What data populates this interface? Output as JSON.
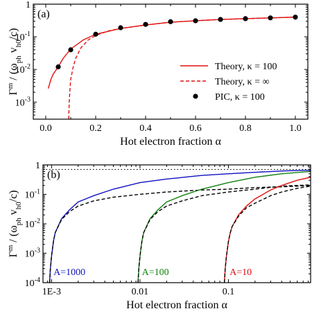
{
  "chart_data": [
    {
      "type": "line",
      "panel_label": "(a)",
      "xlabel": "Hot electron fraction α",
      "ylabel": "Γ^m / (ω_ph v_h0/c)",
      "xscale": "linear",
      "yscale": "log",
      "xlim": [
        -0.05,
        1.05
      ],
      "ylim": [
        0.0003,
        1
      ],
      "x_ticks": [
        {
          "v": 0.0,
          "label": "0.0"
        },
        {
          "v": 0.2,
          "label": "0.2"
        },
        {
          "v": 0.4,
          "label": "0.4"
        },
        {
          "v": 0.6,
          "label": "0.6"
        },
        {
          "v": 0.8,
          "label": "0.8"
        },
        {
          "v": 1.0,
          "label": "1.0"
        }
      ],
      "y_ticks": [
        {
          "v": 0.001,
          "label": "10-3"
        },
        {
          "v": 0.01,
          "label": "10-2"
        },
        {
          "v": 0.1,
          "label": "10-1"
        },
        {
          "v": 1,
          "label": "1"
        }
      ],
      "legend_position": "lower-right",
      "series": [
        {
          "name": "Theory, κ = 100",
          "style": "solid",
          "color": "#e01010",
          "x": [
            0.01,
            0.02,
            0.03,
            0.05,
            0.07,
            0.1,
            0.15,
            0.2,
            0.3,
            0.4,
            0.5,
            0.6,
            0.7,
            0.8,
            0.9,
            1.0
          ],
          "y": [
            0.0026,
            0.0048,
            0.0072,
            0.012,
            0.022,
            0.042,
            0.08,
            0.12,
            0.18,
            0.23,
            0.28,
            0.31,
            0.34,
            0.36,
            0.38,
            0.4
          ]
        },
        {
          "name": "Theory, κ = ∞",
          "style": "dashed",
          "color": "#e01010",
          "x": [
            0.092,
            0.094,
            0.097,
            0.1,
            0.11,
            0.12,
            0.14,
            0.17,
            0.2,
            0.25,
            0.3,
            0.4,
            0.5,
            0.6,
            0.7,
            0.8,
            0.9,
            1.0
          ],
          "y": [
            0.0003,
            0.001,
            0.0025,
            0.005,
            0.012,
            0.022,
            0.045,
            0.08,
            0.11,
            0.15,
            0.18,
            0.23,
            0.28,
            0.31,
            0.34,
            0.36,
            0.38,
            0.4
          ]
        },
        {
          "name": "PIC, κ = 100",
          "style": "marker",
          "color": "#000000",
          "x": [
            0.05,
            0.1,
            0.2,
            0.3,
            0.4,
            0.5,
            0.6,
            0.7,
            0.8,
            0.9,
            1.0
          ],
          "y": [
            0.012,
            0.04,
            0.12,
            0.19,
            0.24,
            0.29,
            0.31,
            0.34,
            0.36,
            0.38,
            0.4
          ]
        }
      ]
    },
    {
      "type": "line",
      "panel_label": "(b)",
      "xlabel": "Hot electron fraction α",
      "ylabel": "Γ^m / (ω_ph v_h0/c)",
      "xscale": "log",
      "yscale": "log",
      "xlim": [
        0.0008,
        0.85
      ],
      "ylim": [
        0.0001,
        1
      ],
      "x_ticks": [
        {
          "v": 0.001,
          "label": "1E-3"
        },
        {
          "v": 0.01,
          "label": "0.01"
        },
        {
          "v": 0.1,
          "label": "0.1"
        }
      ],
      "y_ticks": [
        {
          "v": 0.0001,
          "label": "10-4"
        },
        {
          "v": 0.001,
          "label": "10-3"
        },
        {
          "v": 0.01,
          "label": "10-2"
        },
        {
          "v": 0.1,
          "label": "10-1"
        },
        {
          "v": 1,
          "label": "1"
        }
      ],
      "reference_line": {
        "y": 0.7,
        "style": "dotted",
        "color": "#000000"
      },
      "annotations": [
        {
          "text": "A=1000",
          "color": "#1010c0",
          "x": 0.00105,
          "y": 0.00018
        },
        {
          "text": "A=100",
          "color": "#108010",
          "x": 0.0105,
          "y": 0.00018
        },
        {
          "text": "A=10",
          "color": "#e01010",
          "x": 0.103,
          "y": 0.00018
        }
      ],
      "series": [
        {
          "style": "solid",
          "color": "#1010c0",
          "label": "A=1000",
          "x": [
            0.00095,
            0.00097,
            0.001,
            0.00105,
            0.0011,
            0.0013,
            0.0016,
            0.002,
            0.003,
            0.005,
            0.01,
            0.02,
            0.05,
            0.1,
            0.2,
            0.4,
            0.85
          ],
          "y": [
            0.0001,
            0.0003,
            0.0008,
            0.0025,
            0.005,
            0.015,
            0.03,
            0.055,
            0.09,
            0.15,
            0.25,
            0.33,
            0.44,
            0.5,
            0.56,
            0.62,
            0.66
          ]
        },
        {
          "style": "dashed",
          "color": "#000000",
          "label": "A=1000",
          "x": [
            0.00095,
            0.00097,
            0.001,
            0.00105,
            0.0011,
            0.0013,
            0.0016,
            0.002,
            0.003,
            0.005,
            0.01,
            0.02,
            0.05,
            0.1,
            0.2,
            0.4,
            0.85
          ],
          "y": [
            0.0001,
            0.0003,
            0.0008,
            0.0025,
            0.005,
            0.014,
            0.026,
            0.04,
            0.06,
            0.08,
            0.1,
            0.12,
            0.14,
            0.15,
            0.17,
            0.18,
            0.2
          ]
        },
        {
          "style": "solid",
          "color": "#108010",
          "label": "A=100",
          "x": [
            0.0095,
            0.0097,
            0.01,
            0.0105,
            0.011,
            0.013,
            0.016,
            0.02,
            0.03,
            0.05,
            0.1,
            0.2,
            0.4,
            0.85
          ],
          "y": [
            0.0001,
            0.0003,
            0.0008,
            0.0025,
            0.005,
            0.015,
            0.03,
            0.055,
            0.09,
            0.15,
            0.25,
            0.38,
            0.5,
            0.6
          ]
        },
        {
          "style": "dashed",
          "color": "#000000",
          "label": "A=100",
          "x": [
            0.0095,
            0.0097,
            0.01,
            0.0105,
            0.011,
            0.013,
            0.016,
            0.02,
            0.03,
            0.05,
            0.1,
            0.2,
            0.4,
            0.85
          ],
          "y": [
            0.0001,
            0.0003,
            0.0008,
            0.0025,
            0.005,
            0.014,
            0.026,
            0.04,
            0.06,
            0.09,
            0.12,
            0.15,
            0.19,
            0.21
          ]
        },
        {
          "style": "solid",
          "color": "#e01010",
          "label": "A=10",
          "x": [
            0.09,
            0.092,
            0.095,
            0.1,
            0.105,
            0.11,
            0.13,
            0.16,
            0.2,
            0.3,
            0.4,
            0.6,
            0.85
          ],
          "y": [
            0.0001,
            0.0003,
            0.0008,
            0.0025,
            0.005,
            0.008,
            0.02,
            0.04,
            0.07,
            0.14,
            0.2,
            0.3,
            0.38
          ]
        },
        {
          "style": "dashed",
          "color": "#000000",
          "label": "A=10",
          "x": [
            0.09,
            0.092,
            0.095,
            0.1,
            0.105,
            0.11,
            0.13,
            0.16,
            0.2,
            0.3,
            0.4,
            0.6,
            0.85
          ],
          "y": [
            0.0001,
            0.0003,
            0.0008,
            0.0025,
            0.005,
            0.008,
            0.018,
            0.035,
            0.05,
            0.09,
            0.12,
            0.16,
            0.19
          ]
        }
      ]
    }
  ]
}
